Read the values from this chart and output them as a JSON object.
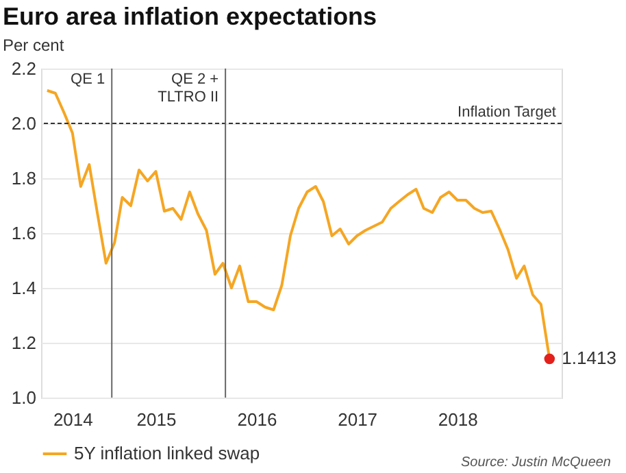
{
  "chart_data": {
    "type": "line",
    "title": "Euro area inflation expectations",
    "ylabel": "Per cent",
    "xlim": [
      "2014-05-10",
      "2019-07-15"
    ],
    "ylim": [
      1.0,
      2.2
    ],
    "xticks": [
      {
        "value": "2014-09-01",
        "label": "2014"
      },
      {
        "value": "2015-07-01",
        "label": "2015"
      },
      {
        "value": "2016-07-01",
        "label": "2016"
      },
      {
        "value": "2017-07-01",
        "label": "2017"
      },
      {
        "value": "2018-07-01",
        "label": "2018"
      }
    ],
    "yticks": [
      {
        "value": 1.0,
        "label": "1.0"
      },
      {
        "value": 1.2,
        "label": "1.2"
      },
      {
        "value": 1.4,
        "label": "1.4"
      },
      {
        "value": 1.6,
        "label": "1.6"
      },
      {
        "value": 1.8,
        "label": "1.8"
      },
      {
        "value": 2.0,
        "label": "2.0"
      },
      {
        "value": 2.2,
        "label": "2.2"
      }
    ],
    "grid": "y",
    "legend": "bottom",
    "series": [
      {
        "name": "5Y inflation linked swap",
        "type": "line",
        "color": "#f5a623",
        "x": [
          "2014-06",
          "2014-07",
          "2014-08",
          "2014-09",
          "2014-10",
          "2014-11",
          "2014-12",
          "2015-01",
          "2015-02",
          "2015-03",
          "2015-04",
          "2015-05",
          "2015-06",
          "2015-07",
          "2015-08",
          "2015-09",
          "2015-10",
          "2015-11",
          "2015-12",
          "2016-01",
          "2016-02",
          "2016-03",
          "2016-04",
          "2016-05",
          "2016-06",
          "2016-07",
          "2016-08",
          "2016-09",
          "2016-10",
          "2016-11",
          "2016-12",
          "2017-01",
          "2017-02",
          "2017-03",
          "2017-04",
          "2017-05",
          "2017-06",
          "2017-07",
          "2017-08",
          "2017-10",
          "2017-11",
          "2017-12",
          "2018-01",
          "2018-02",
          "2018-03",
          "2018-04",
          "2018-05",
          "2018-06",
          "2018-07",
          "2018-08",
          "2018-09",
          "2018-10",
          "2018-11",
          "2018-12",
          "2019-01",
          "2019-02",
          "2019-03",
          "2019-04",
          "2019-05",
          "2019-06"
        ],
        "values": [
          2.12,
          2.11,
          2.04,
          1.965,
          1.77,
          1.85,
          1.67,
          1.49,
          1.565,
          1.73,
          1.7,
          1.83,
          1.79,
          1.825,
          1.68,
          1.69,
          1.65,
          1.75,
          1.67,
          1.61,
          1.45,
          1.49,
          1.4,
          1.48,
          1.35,
          1.35,
          1.33,
          1.32,
          1.41,
          1.59,
          1.69,
          1.75,
          1.77,
          1.715,
          1.59,
          1.615,
          1.56,
          1.59,
          1.61,
          1.64,
          1.69,
          1.715,
          1.74,
          1.76,
          1.69,
          1.675,
          1.73,
          1.75,
          1.72,
          1.72,
          1.69,
          1.675,
          1.68,
          1.615,
          1.54,
          1.435,
          1.48,
          1.375,
          1.34,
          1.1413
        ]
      },
      {
        "type": "scatter",
        "marker": "circle",
        "color": "#e3201b",
        "x": [
          "2019-06"
        ],
        "values": [
          1.1413
        ]
      }
    ],
    "ref_lines": [
      {
        "axis": "y",
        "value": 2.0,
        "label": "Inflation Target",
        "line_style": "dashed",
        "color": "#333333"
      },
      {
        "axis": "x",
        "value": "2015-01-22",
        "label": "QE 1",
        "color": "#666666"
      },
      {
        "axis": "x",
        "value": "2016-03-10",
        "label": "QE 2 +\nTLTRO II",
        "color": "#666666"
      }
    ],
    "annotations": [
      {
        "text": "1.1413",
        "x": "2019-06",
        "y": 1.1413
      },
      "Source: Justin McQueen"
    ]
  }
}
